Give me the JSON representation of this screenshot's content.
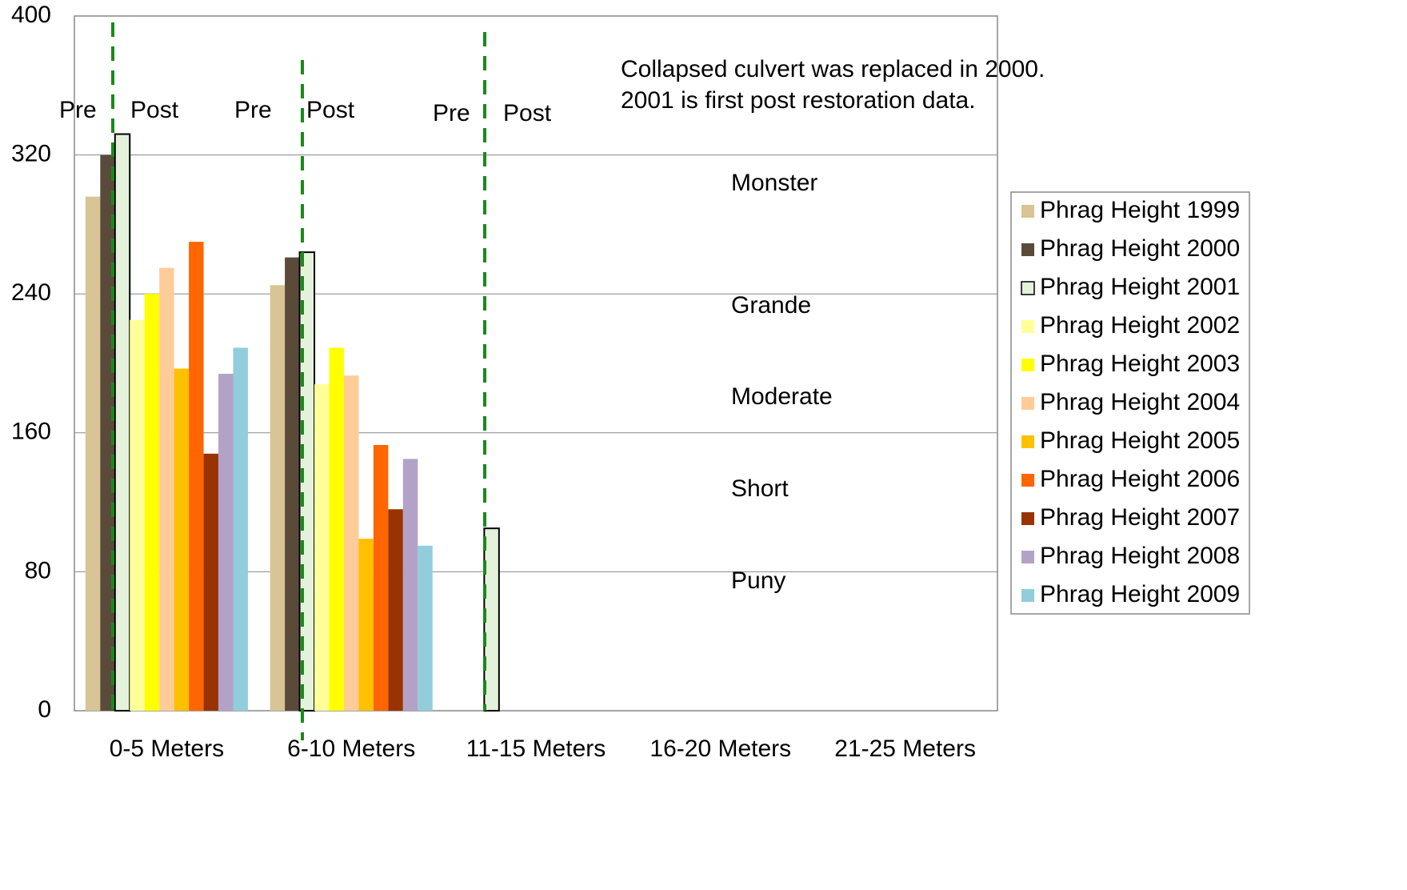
{
  "chart_data": {
    "type": "bar",
    "categories": [
      "0-5 Meters",
      "6-10 Meters",
      "11-15 Meters",
      "16-20 Meters",
      "21-25 Meters"
    ],
    "series": [
      {
        "name": "Phrag Height 1999",
        "color": "#d8c494",
        "values": [
          296,
          245,
          null,
          null,
          null
        ]
      },
      {
        "name": "Phrag Height 2000",
        "color": "#5a4a3a",
        "values": [
          320,
          261,
          null,
          null,
          null
        ]
      },
      {
        "name": "Phrag Height 2001",
        "color": "#e4f2dc",
        "values": [
          332,
          264,
          105,
          null,
          null
        ]
      },
      {
        "name": "Phrag Height 2002",
        "color": "#ffff99",
        "values": [
          225,
          188,
          null,
          null,
          null
        ]
      },
      {
        "name": "Phrag Height 2003",
        "color": "#ffff00",
        "values": [
          240,
          209,
          null,
          null,
          null
        ]
      },
      {
        "name": "Phrag Height 2004",
        "color": "#ffcc99",
        "values": [
          255,
          193,
          null,
          null,
          null
        ]
      },
      {
        "name": "Phrag Height 2005",
        "color": "#ffc000",
        "values": [
          197,
          99,
          null,
          null,
          null
        ]
      },
      {
        "name": "Phrag Height 2006",
        "color": "#ff6600",
        "values": [
          270,
          153,
          null,
          null,
          null
        ]
      },
      {
        "name": "Phrag Height 2007",
        "color": "#993300",
        "values": [
          148,
          116,
          null,
          null,
          null
        ]
      },
      {
        "name": "Phrag Height 2008",
        "color": "#b3a2c7",
        "values": [
          194,
          145,
          null,
          null,
          null
        ]
      },
      {
        "name": "Phrag Height 2009",
        "color": "#92cddc",
        "values": [
          209,
          95,
          null,
          null,
          null
        ]
      }
    ],
    "ylim": [
      0,
      400
    ],
    "yticks": [
      0,
      80,
      160,
      240,
      320,
      400
    ],
    "grid": true,
    "legend": "right",
    "phase_labels": [
      "Pre",
      "Post",
      "Pre",
      "Post",
      "Pre",
      "Post"
    ],
    "note": [
      "Collapsed culvert was replaced in 2000.",
      "2001 is first post restoration data."
    ],
    "height_classes": [
      "Monster",
      "Grande",
      "Moderate",
      "Short",
      "Puny"
    ]
  }
}
